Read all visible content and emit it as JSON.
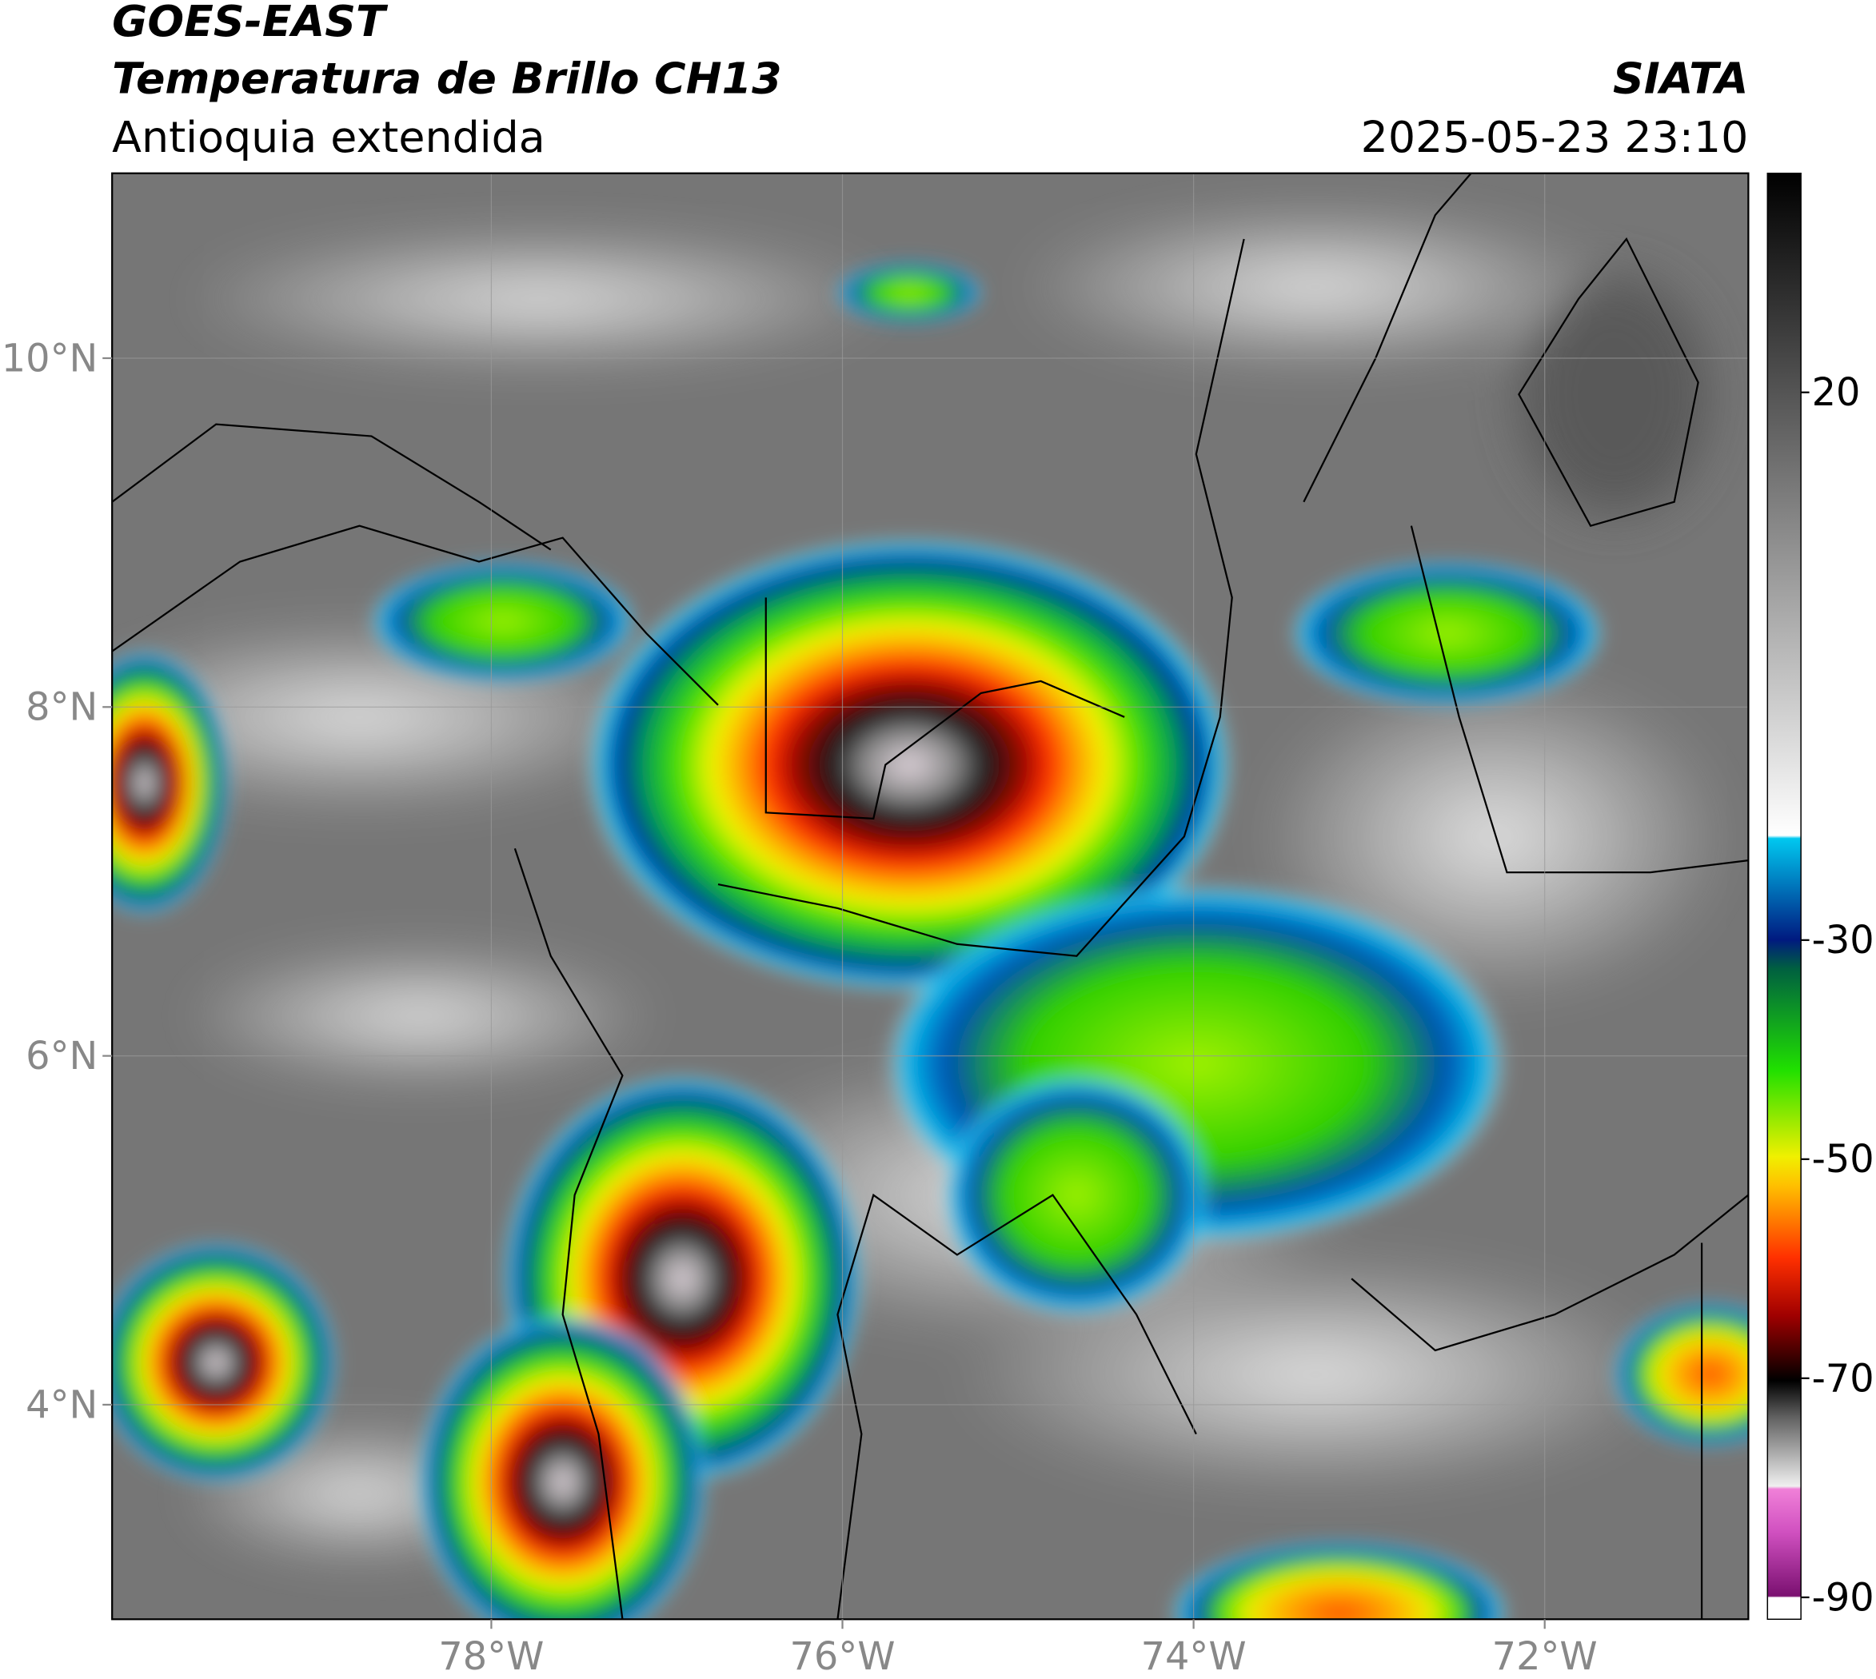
{
  "header": {
    "title": "GOES-EAST",
    "subtitle": "Temperatura de Brillo CH13",
    "region": "Antioquia extendida",
    "source": "SIATA",
    "datetime": "2025-05-23 23:10"
  },
  "map": {
    "xlim": [
      -80.16,
      -70.84
    ],
    "ylim": [
      2.77,
      11.06
    ],
    "xticks": [
      {
        "value": -78,
        "label": "78°W"
      },
      {
        "value": -76,
        "label": "76°W"
      },
      {
        "value": -74,
        "label": "74°W"
      },
      {
        "value": -72,
        "label": "72°W"
      }
    ],
    "yticks": [
      {
        "value": 10,
        "label": "10°N"
      },
      {
        "value": 8,
        "label": "8°N"
      },
      {
        "value": 6,
        "label": "6°N"
      },
      {
        "value": 4,
        "label": "4°N"
      }
    ],
    "grid": true
  },
  "colorbar": {
    "ylim": [
      -92,
      40
    ],
    "yticks": [
      20,
      -30,
      -50,
      -70,
      -90
    ]
  }
}
